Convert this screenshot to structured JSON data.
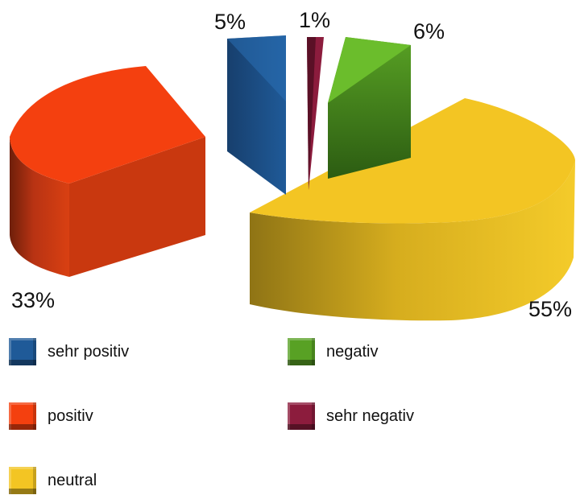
{
  "chart_data": {
    "type": "pie",
    "title": "",
    "slices": [
      {
        "label": "sehr positiv",
        "value": 5,
        "value_label": "5%",
        "color": "#1f5a98"
      },
      {
        "label": "positiv",
        "value": 33,
        "value_label": "33%",
        "color": "#f4400f"
      },
      {
        "label": "neutral",
        "value": 55,
        "value_label": "55%",
        "color": "#f3c523"
      },
      {
        "label": "negativ",
        "value": 6,
        "value_label": "6%",
        "color": "#58a124"
      },
      {
        "label": "sehr negativ",
        "value": 1,
        "value_label": "1%",
        "color": "#8c1c3d"
      }
    ],
    "style": "3d-exploded",
    "legend_position": "bottom"
  },
  "legend": {
    "items": [
      {
        "label": "sehr positiv",
        "color": "#1f5a98"
      },
      {
        "label": "negativ",
        "color": "#58a124"
      },
      {
        "label": "positiv",
        "color": "#f4400f"
      },
      {
        "label": "sehr negativ",
        "color": "#8c1c3d"
      },
      {
        "label": "neutral",
        "color": "#f3c523"
      }
    ]
  }
}
